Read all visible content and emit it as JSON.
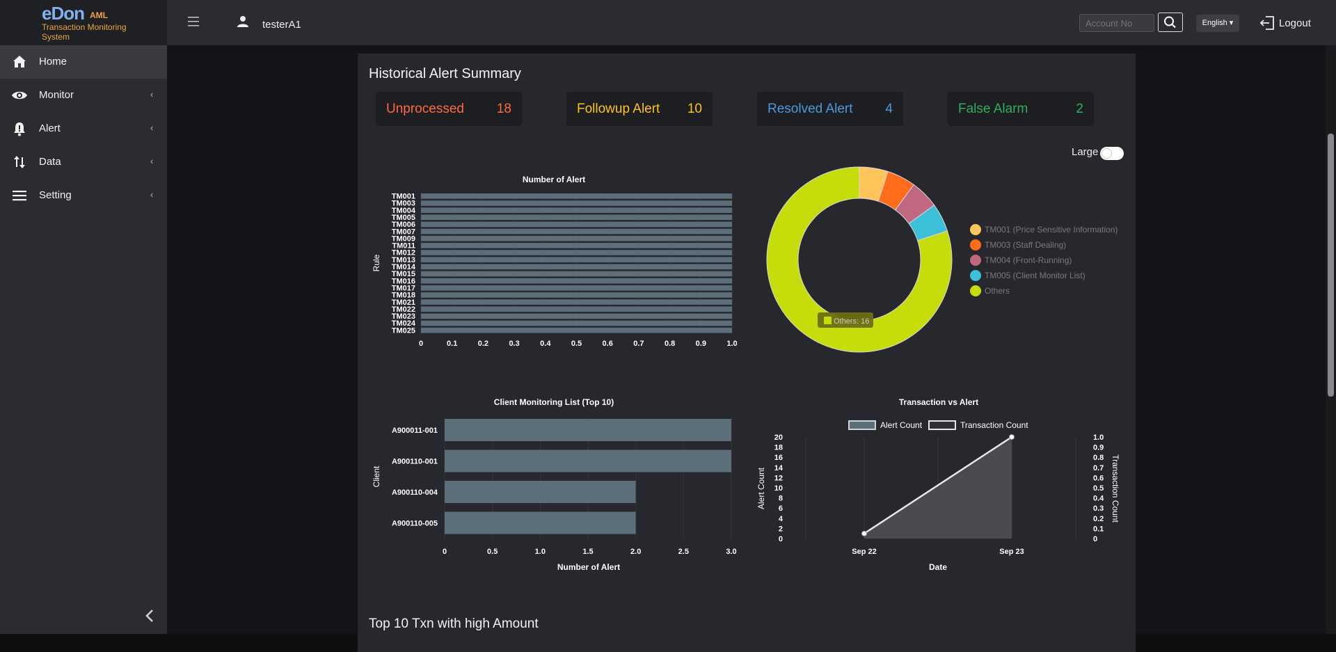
{
  "brand": {
    "logo": "eDon",
    "aml": "AML",
    "subtitle": "Transaction Monitoring System"
  },
  "sidebar": {
    "items": [
      {
        "label": "Home",
        "icon": "home-icon"
      },
      {
        "label": "Monitor",
        "icon": "eye-icon",
        "chevron": "‹"
      },
      {
        "label": "Alert",
        "icon": "bell-alert-icon",
        "chevron": "‹"
      },
      {
        "label": "Data",
        "icon": "sort-arrows-icon",
        "chevron": "‹"
      },
      {
        "label": "Setting",
        "icon": "menu-lines-icon",
        "chevron": "‹"
      }
    ]
  },
  "topbar": {
    "username": "testerA1",
    "account_placeholder": "Account No",
    "language": "English ▾",
    "logout": "Logout"
  },
  "summary": {
    "title": "Historical Alert Summary",
    "stats": [
      {
        "label": "Unprocessed",
        "value": "18",
        "color": "#ff6b3d"
      },
      {
        "label": "Followup Alert",
        "value": "10",
        "color": "#ffc21a"
      },
      {
        "label": "Resolved Alert",
        "value": "4",
        "color": "#4a9ad9"
      },
      {
        "label": "False Alarm",
        "value": "2",
        "color": "#2fae5b"
      }
    ],
    "toggle_label": "Large",
    "next_title": "Top 10 Txn with high Amount"
  },
  "chart_data": [
    {
      "type": "bar",
      "orientation": "horizontal",
      "title": "Number of Alert",
      "ylabel": "Rule",
      "xlabel": "",
      "categories": [
        "TM001",
        "TM003",
        "TM004",
        "TM005",
        "TM006",
        "TM007",
        "TM009",
        "TM011",
        "TM012",
        "TM013",
        "TM014",
        "TM015",
        "TM016",
        "TM017",
        "TM018",
        "TM021",
        "TM022",
        "TM023",
        "TM024",
        "TM025"
      ],
      "values": [
        1,
        1,
        1,
        1,
        1,
        1,
        1,
        1,
        1,
        1,
        1,
        1,
        1,
        1,
        1,
        1,
        1,
        1,
        1,
        1
      ],
      "xlim": [
        0,
        1
      ],
      "xticks": [
        "0",
        "0.1",
        "0.2",
        "0.3",
        "0.4",
        "0.5",
        "0.6",
        "0.7",
        "0.8",
        "0.9",
        "1.0"
      ],
      "color": "#5d6e7b"
    },
    {
      "type": "pie",
      "donut": true,
      "slices": [
        {
          "name": "TM001 (Price Sensitive Information)",
          "value": 1,
          "color": "#ffc45a"
        },
        {
          "name": "TM003 (Staff Dealing)",
          "value": 1,
          "color": "#ff6d1a"
        },
        {
          "name": "TM004 (Front-Running)",
          "value": 1,
          "color": "#c0687f"
        },
        {
          "name": "TM005 (Client Monitor List)",
          "value": 1,
          "color": "#3cc0d8"
        },
        {
          "name": "Others",
          "value": 16,
          "color": "#c6dd0b"
        }
      ],
      "tooltip": "Others: 16",
      "legend_position": "right"
    },
    {
      "type": "bar",
      "orientation": "horizontal",
      "title": "Client Monitoring List (Top 10)",
      "ylabel": "Client",
      "xlabel": "Number of Alert",
      "categories": [
        "A900011-001",
        "A900110-001",
        "A900110-004",
        "A900110-005"
      ],
      "values": [
        3,
        3,
        2,
        2
      ],
      "xlim": [
        0,
        3
      ],
      "xticks": [
        "0",
        "0.5",
        "1.0",
        "1.5",
        "2.0",
        "2.5",
        "3.0"
      ],
      "color": "#5d6e7b"
    },
    {
      "type": "line",
      "title": "Transaction vs Alert",
      "xlabel": "Date",
      "ylabel": "Alert Count",
      "y2label": "Transaction Count",
      "categories": [
        "Sep 22",
        "Sep 23"
      ],
      "series": [
        {
          "name": "Alert Count",
          "values": [
            1,
            20
          ],
          "style": "area"
        },
        {
          "name": "Transaction Count",
          "values": [
            0,
            0
          ],
          "axis": "right"
        }
      ],
      "ylim": [
        0,
        20
      ],
      "yticks": [
        "0",
        "2",
        "4",
        "6",
        "8",
        "10",
        "12",
        "14",
        "16",
        "18",
        "20"
      ],
      "y2lim": [
        0,
        1
      ],
      "y2ticks": [
        "0",
        "0.1",
        "0.2",
        "0.3",
        "0.4",
        "0.5",
        "0.6",
        "0.7",
        "0.8",
        "0.9",
        "1.0"
      ]
    }
  ]
}
